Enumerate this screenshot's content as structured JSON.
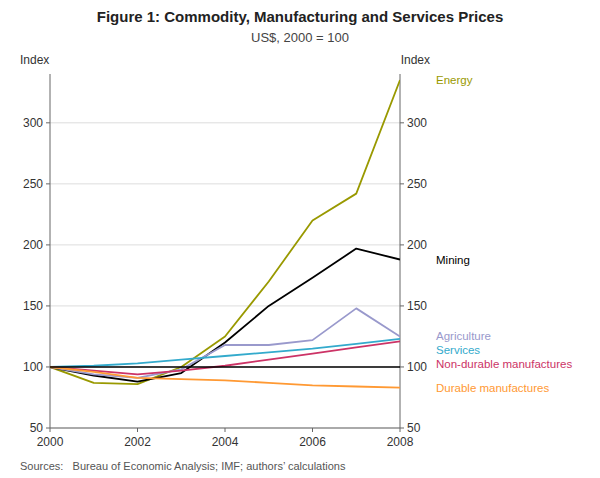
{
  "chart_data": {
    "type": "line",
    "title": "Figure 1: Commodity, Manufacturing and Services Prices",
    "subtitle": "US$, 2000 = 100",
    "y_label": "Index",
    "y2_label": "Index",
    "source": "Sources:   Bureau of Economic Analysis; IMF; authors’ calculations",
    "x": [
      2000,
      2001,
      2002,
      2003,
      2004,
      2005,
      2006,
      2007,
      2008
    ],
    "series": [
      {
        "name": "Energy",
        "color": "#999900",
        "values": [
          100,
          87,
          86,
          100,
          125,
          170,
          220,
          242,
          335
        ]
      },
      {
        "name": "Mining",
        "color": "#000000",
        "values": [
          100,
          93,
          88,
          95,
          120,
          150,
          173,
          197,
          188
        ]
      },
      {
        "name": "Agriculture",
        "color": "#9999cc",
        "values": [
          100,
          94,
          91,
          98,
          118,
          118,
          122,
          148,
          125
        ]
      },
      {
        "name": "Services",
        "color": "#33aacc",
        "values": [
          100,
          101,
          103,
          106,
          109,
          112,
          115,
          119,
          123
        ]
      },
      {
        "name": "Non-durable manufactures",
        "color": "#cc3366",
        "values": [
          100,
          97,
          94,
          97,
          101,
          106,
          111,
          116,
          121
        ]
      },
      {
        "name": "Durable manufactures",
        "color": "#ff9933",
        "values": [
          100,
          96,
          91,
          90,
          89,
          87,
          85,
          84,
          83
        ]
      }
    ],
    "xlim": [
      2000,
      2008
    ],
    "xticks": [
      2000,
      2002,
      2004,
      2006,
      2008
    ],
    "ylim": [
      50,
      340
    ],
    "yticks": [
      50,
      100,
      150,
      200,
      250,
      300
    ],
    "y2lim": [
      50,
      340
    ],
    "y2ticks": [
      50,
      100,
      150,
      200,
      250,
      300
    ],
    "baseline": 100,
    "grid": true
  }
}
